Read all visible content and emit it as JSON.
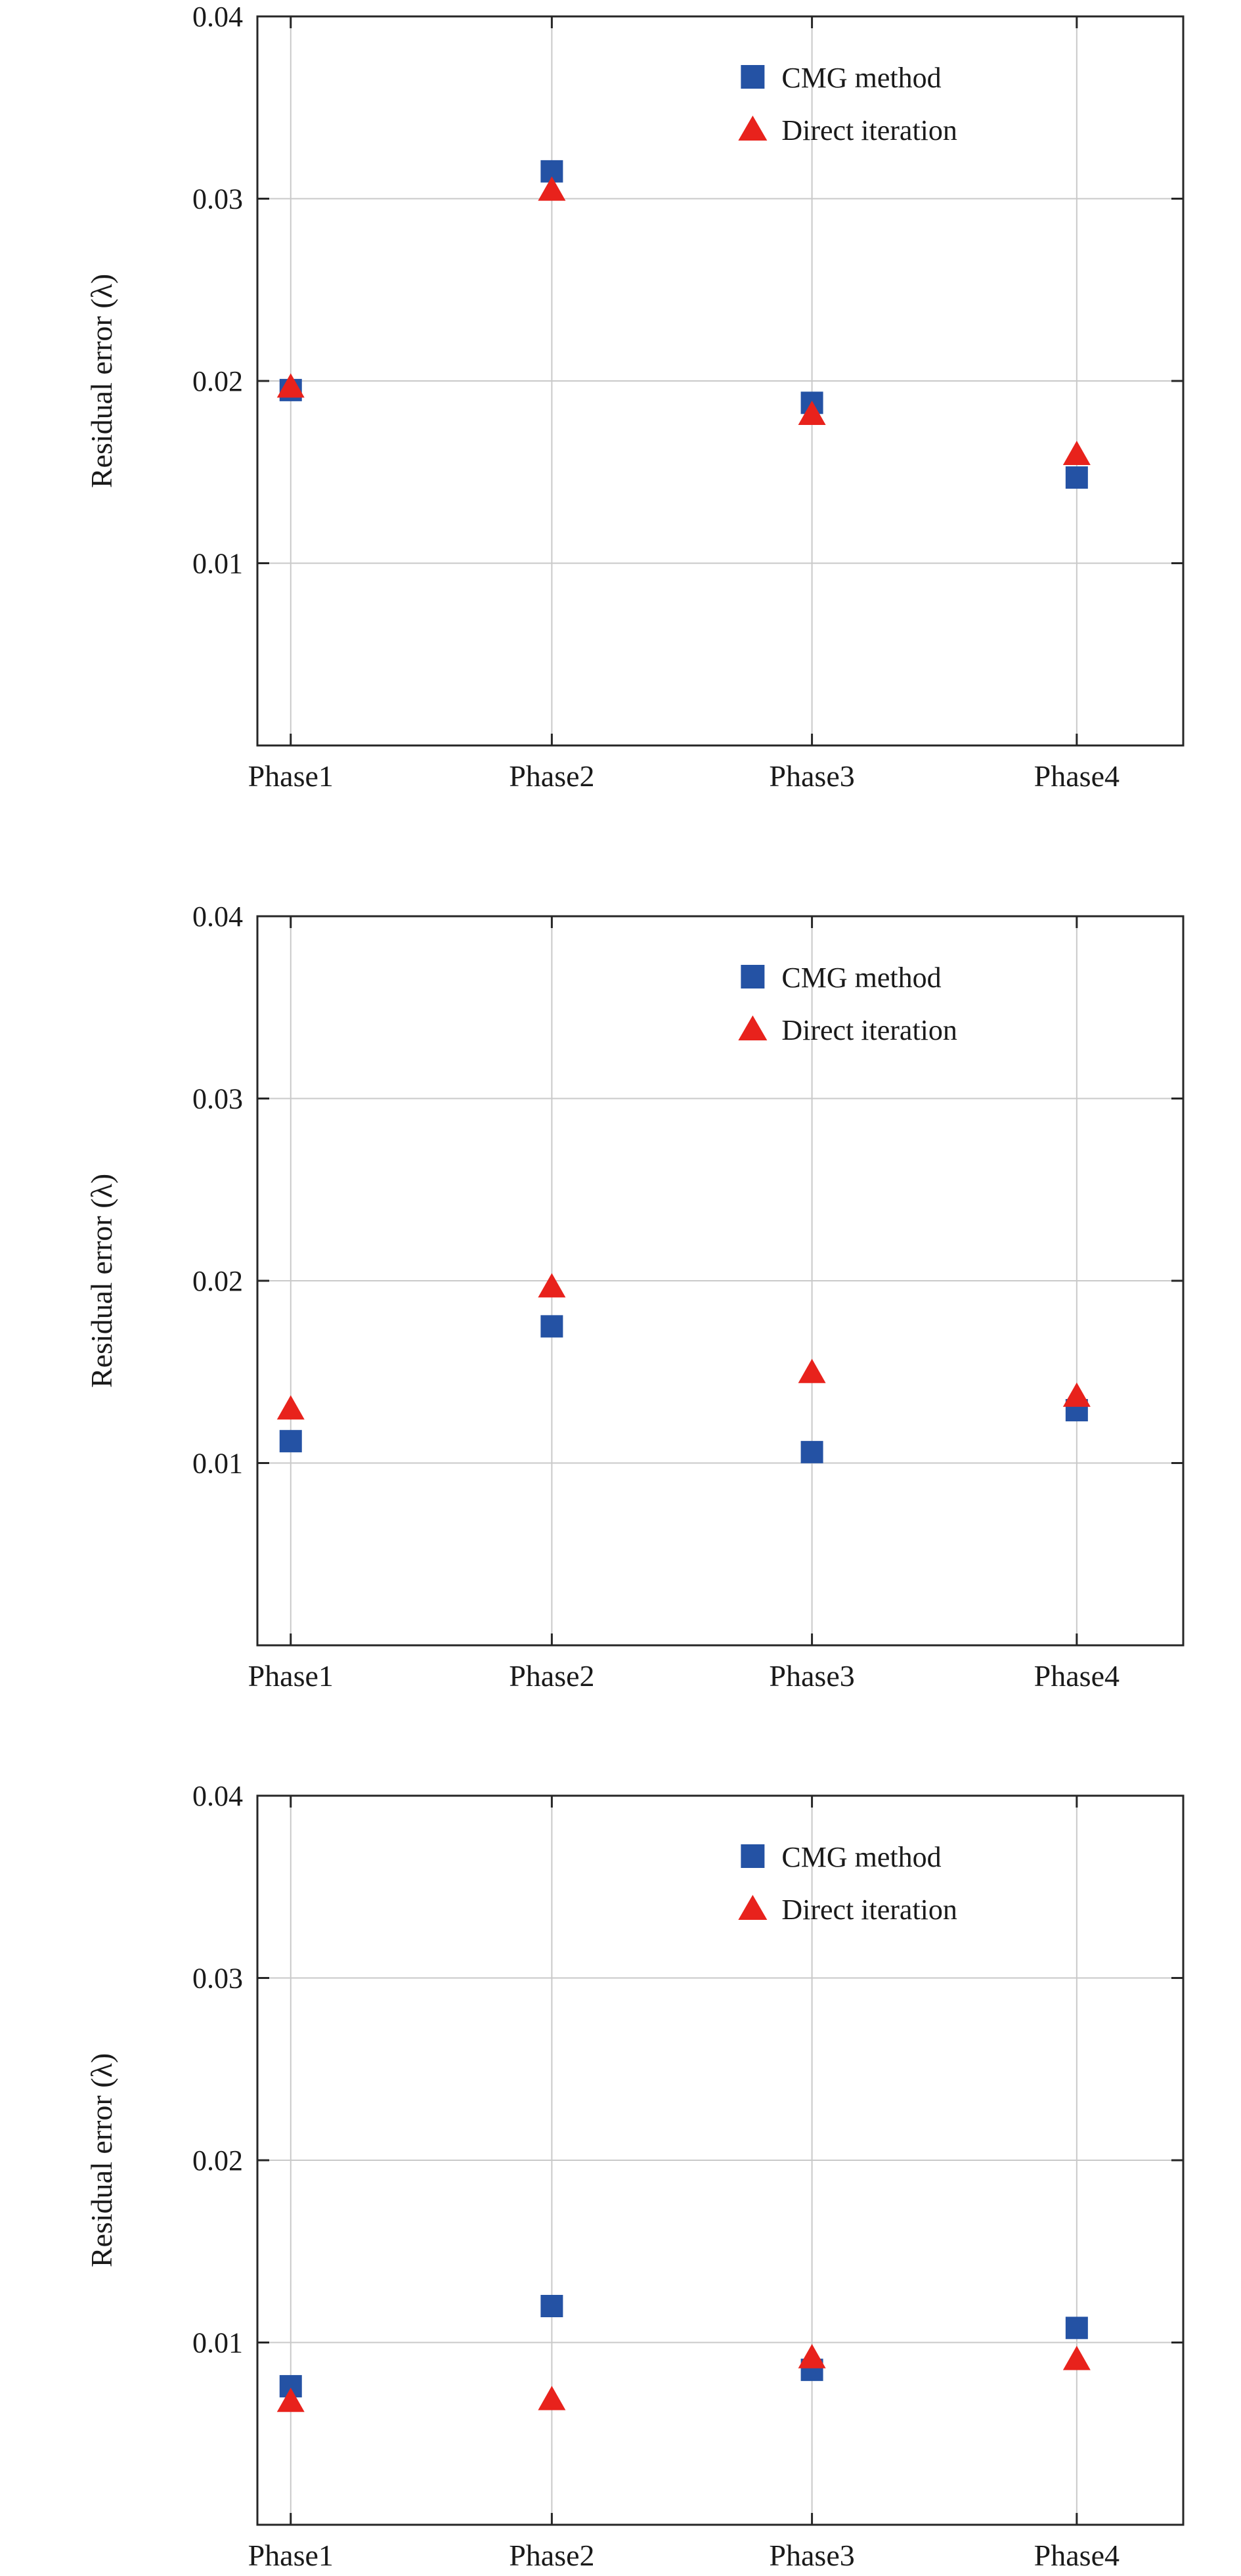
{
  "figure": {
    "ylabel": "Residual error (λ)",
    "legend_entries": [
      "CMG method",
      "Direct iteration"
    ],
    "colors": {
      "cmg": "#2452A4",
      "direct": "#E8221C",
      "grid": "#c9c9c9",
      "axis": "#262626"
    }
  },
  "chart_data": [
    {
      "type": "scatter",
      "title": "",
      "categories": [
        "Phase1",
        "Phase2",
        "Phase3",
        "Phase4"
      ],
      "series": [
        {
          "name": "CMG method",
          "marker": "square",
          "color": "#2452A4",
          "values": [
            0.0195,
            0.0315,
            0.0188,
            0.0147
          ]
        },
        {
          "name": "Direct iteration",
          "marker": "triangle",
          "color": "#E8221C",
          "values": [
            0.0197,
            0.0305,
            0.0182,
            0.016
          ]
        }
      ],
      "xlabel": "",
      "ylabel": "Residual error (λ)",
      "ylim": [
        0,
        0.04
      ],
      "yticks": [
        0.01,
        0.02,
        0.03,
        0.04
      ],
      "grid": true,
      "legend_position": "upper-right-inside"
    },
    {
      "type": "scatter",
      "title": "",
      "categories": [
        "Phase1",
        "Phase2",
        "Phase3",
        "Phase4"
      ],
      "series": [
        {
          "name": "CMG method",
          "marker": "square",
          "color": "#2452A4",
          "values": [
            0.0112,
            0.0175,
            0.0106,
            0.0129
          ]
        },
        {
          "name": "Direct iteration",
          "marker": "triangle",
          "color": "#E8221C",
          "values": [
            0.013,
            0.0197,
            0.015,
            0.0137
          ]
        }
      ],
      "xlabel": "",
      "ylabel": "Residual error (λ)",
      "ylim": [
        0,
        0.04
      ],
      "yticks": [
        0.01,
        0.02,
        0.03,
        0.04
      ],
      "grid": true,
      "legend_position": "upper-right-inside"
    },
    {
      "type": "scatter",
      "title": "",
      "categories": [
        "Phase1",
        "Phase2",
        "Phase3",
        "Phase4"
      ],
      "series": [
        {
          "name": "CMG method",
          "marker": "square",
          "color": "#2452A4",
          "values": [
            0.0076,
            0.012,
            0.0085,
            0.0108
          ]
        },
        {
          "name": "Direct iteration",
          "marker": "triangle",
          "color": "#E8221C",
          "values": [
            0.0068,
            0.0069,
            0.0092,
            0.0091
          ]
        }
      ],
      "xlabel": "",
      "ylabel": "Residual error (λ)",
      "ylim": [
        0,
        0.04
      ],
      "yticks": [
        0.01,
        0.02,
        0.03,
        0.04
      ],
      "grid": true,
      "legend_position": "upper-right-inside"
    }
  ]
}
